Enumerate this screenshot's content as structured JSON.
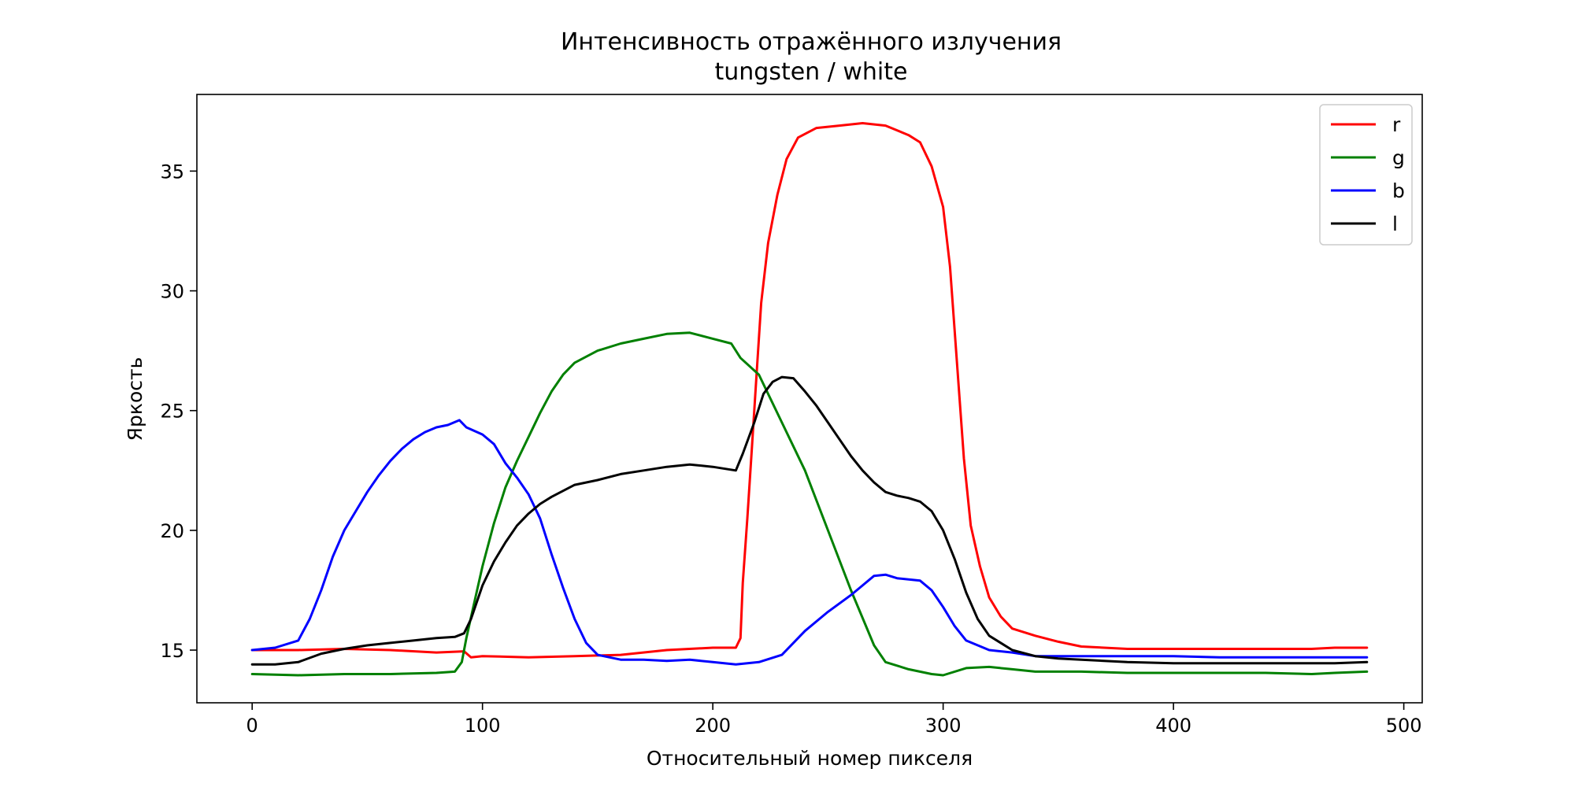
{
  "chart_data": {
    "type": "line",
    "title": "Интенсивность отражённого излучения",
    "subtitle": "tungsten  /  white",
    "xlabel": "Относительный номер пикселя",
    "ylabel": "Яркость",
    "xlim": [
      -24,
      508
    ],
    "ylim": [
      12.8,
      38.2
    ],
    "xticks": [
      0,
      100,
      200,
      300,
      400,
      500
    ],
    "yticks": [
      15,
      20,
      25,
      30,
      35
    ],
    "grid": false,
    "legend_position": "top-right",
    "series": [
      {
        "name": "r",
        "color": "#ff0000",
        "points": [
          [
            0,
            15.0
          ],
          [
            20,
            15.0
          ],
          [
            40,
            15.05
          ],
          [
            60,
            15.0
          ],
          [
            80,
            14.9
          ],
          [
            92,
            14.95
          ],
          [
            95,
            14.7
          ],
          [
            100,
            14.75
          ],
          [
            120,
            14.7
          ],
          [
            140,
            14.75
          ],
          [
            160,
            14.8
          ],
          [
            180,
            15.0
          ],
          [
            200,
            15.1
          ],
          [
            210,
            15.1
          ],
          [
            212,
            15.5
          ],
          [
            213,
            17.8
          ],
          [
            215,
            20.5
          ],
          [
            217,
            23.5
          ],
          [
            219,
            26.5
          ],
          [
            221,
            29.5
          ],
          [
            224,
            32.0
          ],
          [
            228,
            34.0
          ],
          [
            232,
            35.5
          ],
          [
            237,
            36.4
          ],
          [
            245,
            36.8
          ],
          [
            255,
            36.9
          ],
          [
            265,
            37.0
          ],
          [
            275,
            36.9
          ],
          [
            285,
            36.5
          ],
          [
            290,
            36.2
          ],
          [
            295,
            35.2
          ],
          [
            300,
            33.5
          ],
          [
            303,
            31.0
          ],
          [
            306,
            27.0
          ],
          [
            309,
            23.0
          ],
          [
            312,
            20.2
          ],
          [
            316,
            18.5
          ],
          [
            320,
            17.2
          ],
          [
            325,
            16.4
          ],
          [
            330,
            15.9
          ],
          [
            340,
            15.6
          ],
          [
            350,
            15.35
          ],
          [
            360,
            15.15
          ],
          [
            380,
            15.05
          ],
          [
            400,
            15.05
          ],
          [
            420,
            15.05
          ],
          [
            440,
            15.05
          ],
          [
            460,
            15.05
          ],
          [
            470,
            15.1
          ],
          [
            484,
            15.1
          ]
        ]
      },
      {
        "name": "g",
        "color": "#008000",
        "points": [
          [
            0,
            14.0
          ],
          [
            20,
            13.95
          ],
          [
            40,
            14.0
          ],
          [
            60,
            14.0
          ],
          [
            80,
            14.05
          ],
          [
            88,
            14.1
          ],
          [
            91,
            14.5
          ],
          [
            93,
            15.5
          ],
          [
            96,
            16.8
          ],
          [
            100,
            18.5
          ],
          [
            105,
            20.3
          ],
          [
            110,
            21.8
          ],
          [
            115,
            22.9
          ],
          [
            120,
            23.9
          ],
          [
            125,
            24.9
          ],
          [
            130,
            25.8
          ],
          [
            135,
            26.5
          ],
          [
            140,
            27.0
          ],
          [
            150,
            27.5
          ],
          [
            160,
            27.8
          ],
          [
            170,
            28.0
          ],
          [
            180,
            28.2
          ],
          [
            190,
            28.25
          ],
          [
            200,
            28.0
          ],
          [
            208,
            27.8
          ],
          [
            212,
            27.2
          ],
          [
            220,
            26.5
          ],
          [
            230,
            24.5
          ],
          [
            240,
            22.5
          ],
          [
            250,
            20.0
          ],
          [
            260,
            17.5
          ],
          [
            270,
            15.2
          ],
          [
            275,
            14.5
          ],
          [
            285,
            14.2
          ],
          [
            295,
            14.0
          ],
          [
            300,
            13.95
          ],
          [
            310,
            14.25
          ],
          [
            320,
            14.3
          ],
          [
            330,
            14.2
          ],
          [
            340,
            14.1
          ],
          [
            360,
            14.1
          ],
          [
            380,
            14.05
          ],
          [
            400,
            14.05
          ],
          [
            420,
            14.05
          ],
          [
            440,
            14.05
          ],
          [
            460,
            14.0
          ],
          [
            470,
            14.05
          ],
          [
            484,
            14.1
          ]
        ]
      },
      {
        "name": "b",
        "color": "#0000ff",
        "points": [
          [
            0,
            15.0
          ],
          [
            10,
            15.1
          ],
          [
            20,
            15.4
          ],
          [
            25,
            16.3
          ],
          [
            30,
            17.5
          ],
          [
            35,
            18.9
          ],
          [
            40,
            20.0
          ],
          [
            45,
            20.8
          ],
          [
            50,
            21.6
          ],
          [
            55,
            22.3
          ],
          [
            60,
            22.9
          ],
          [
            65,
            23.4
          ],
          [
            70,
            23.8
          ],
          [
            75,
            24.1
          ],
          [
            80,
            24.3
          ],
          [
            85,
            24.4
          ],
          [
            90,
            24.6
          ],
          [
            93,
            24.3
          ],
          [
            100,
            24.0
          ],
          [
            105,
            23.6
          ],
          [
            110,
            22.8
          ],
          [
            115,
            22.2
          ],
          [
            120,
            21.5
          ],
          [
            125,
            20.5
          ],
          [
            130,
            19.0
          ],
          [
            135,
            17.6
          ],
          [
            140,
            16.3
          ],
          [
            145,
            15.3
          ],
          [
            150,
            14.8
          ],
          [
            160,
            14.6
          ],
          [
            170,
            14.6
          ],
          [
            180,
            14.55
          ],
          [
            190,
            14.6
          ],
          [
            200,
            14.5
          ],
          [
            210,
            14.4
          ],
          [
            220,
            14.5
          ],
          [
            230,
            14.8
          ],
          [
            235,
            15.3
          ],
          [
            240,
            15.8
          ],
          [
            250,
            16.6
          ],
          [
            260,
            17.3
          ],
          [
            265,
            17.7
          ],
          [
            270,
            18.1
          ],
          [
            275,
            18.15
          ],
          [
            280,
            18.0
          ],
          [
            290,
            17.9
          ],
          [
            295,
            17.5
          ],
          [
            300,
            16.8
          ],
          [
            305,
            16.0
          ],
          [
            310,
            15.4
          ],
          [
            320,
            15.0
          ],
          [
            330,
            14.9
          ],
          [
            340,
            14.75
          ],
          [
            360,
            14.75
          ],
          [
            380,
            14.75
          ],
          [
            400,
            14.75
          ],
          [
            420,
            14.7
          ],
          [
            440,
            14.7
          ],
          [
            460,
            14.7
          ],
          [
            470,
            14.7
          ],
          [
            484,
            14.7
          ]
        ]
      },
      {
        "name": "l",
        "color": "#000000",
        "points": [
          [
            0,
            14.4
          ],
          [
            10,
            14.4
          ],
          [
            20,
            14.5
          ],
          [
            30,
            14.85
          ],
          [
            40,
            15.05
          ],
          [
            50,
            15.2
          ],
          [
            60,
            15.3
          ],
          [
            70,
            15.4
          ],
          [
            80,
            15.5
          ],
          [
            88,
            15.55
          ],
          [
            92,
            15.7
          ],
          [
            95,
            16.3
          ],
          [
            100,
            17.7
          ],
          [
            105,
            18.7
          ],
          [
            110,
            19.5
          ],
          [
            115,
            20.2
          ],
          [
            120,
            20.7
          ],
          [
            125,
            21.1
          ],
          [
            130,
            21.4
          ],
          [
            140,
            21.9
          ],
          [
            150,
            22.1
          ],
          [
            160,
            22.35
          ],
          [
            170,
            22.5
          ],
          [
            180,
            22.65
          ],
          [
            190,
            22.75
          ],
          [
            200,
            22.65
          ],
          [
            210,
            22.5
          ],
          [
            213,
            23.2
          ],
          [
            218,
            24.5
          ],
          [
            222,
            25.7
          ],
          [
            226,
            26.2
          ],
          [
            230,
            26.4
          ],
          [
            235,
            26.35
          ],
          [
            240,
            25.8
          ],
          [
            245,
            25.2
          ],
          [
            250,
            24.5
          ],
          [
            255,
            23.8
          ],
          [
            260,
            23.1
          ],
          [
            265,
            22.5
          ],
          [
            270,
            22.0
          ],
          [
            275,
            21.6
          ],
          [
            280,
            21.45
          ],
          [
            285,
            21.35
          ],
          [
            290,
            21.2
          ],
          [
            295,
            20.8
          ],
          [
            300,
            20.0
          ],
          [
            305,
            18.8
          ],
          [
            310,
            17.4
          ],
          [
            315,
            16.3
          ],
          [
            320,
            15.6
          ],
          [
            330,
            15.0
          ],
          [
            340,
            14.75
          ],
          [
            350,
            14.65
          ],
          [
            360,
            14.6
          ],
          [
            380,
            14.5
          ],
          [
            400,
            14.45
          ],
          [
            420,
            14.45
          ],
          [
            440,
            14.45
          ],
          [
            460,
            14.45
          ],
          [
            470,
            14.45
          ],
          [
            484,
            14.5
          ]
        ]
      }
    ]
  }
}
